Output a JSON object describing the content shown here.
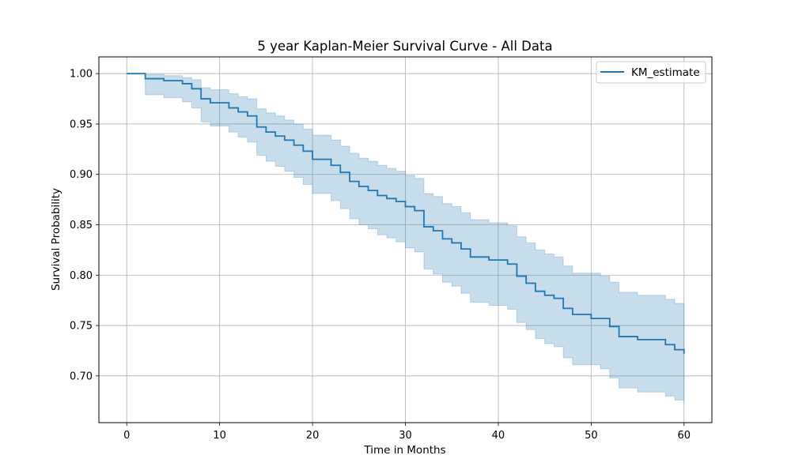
{
  "chart_data": {
    "type": "line",
    "title": "5 year Kaplan-Meier Survival Curve - All Data",
    "xlabel": "Time in Months",
    "ylabel": "Survival Probability",
    "xlim": [
      -3,
      63
    ],
    "ylim": [
      0.6536,
      1.0166
    ],
    "xticks": [
      0,
      10,
      20,
      30,
      40,
      50,
      60
    ],
    "yticks": [
      0.7,
      0.75,
      0.8,
      0.85,
      0.9,
      0.95,
      1.0
    ],
    "xtick_labels": [
      "0",
      "10",
      "20",
      "30",
      "40",
      "50",
      "60"
    ],
    "ytick_labels": [
      "0.70",
      "0.75",
      "0.80",
      "0.85",
      "0.90",
      "0.95",
      "1.00"
    ],
    "grid": true,
    "legend_position": "top-right",
    "step": "post",
    "line_color": "#1f77b4",
    "band_color": "#1f77b4",
    "series": [
      {
        "name": "KM_estimate",
        "x": [
          0,
          2,
          4,
          6,
          7,
          8,
          9,
          11,
          12,
          13,
          14,
          15,
          16,
          17,
          18,
          19,
          20,
          22,
          23,
          24,
          25,
          26,
          27,
          28,
          29,
          30,
          31,
          32,
          33,
          34,
          35,
          36,
          37,
          39,
          41,
          42,
          43,
          44,
          45,
          46,
          47,
          48,
          50,
          51,
          52,
          53,
          55,
          58,
          59,
          60
        ],
        "y": [
          1.0,
          0.995,
          0.993,
          0.99,
          0.985,
          0.975,
          0.971,
          0.966,
          0.962,
          0.958,
          0.947,
          0.942,
          0.938,
          0.934,
          0.929,
          0.923,
          0.915,
          0.909,
          0.902,
          0.893,
          0.888,
          0.884,
          0.879,
          0.876,
          0.873,
          0.868,
          0.864,
          0.848,
          0.844,
          0.836,
          0.832,
          0.826,
          0.818,
          0.815,
          0.811,
          0.799,
          0.792,
          0.784,
          0.78,
          0.777,
          0.767,
          0.761,
          0.757,
          0.757,
          0.749,
          0.739,
          0.736,
          0.731,
          0.726,
          0.722
        ],
        "ci_lower": [
          1.0,
          0.979,
          0.976,
          0.972,
          0.966,
          0.952,
          0.948,
          0.942,
          0.937,
          0.932,
          0.919,
          0.913,
          0.908,
          0.903,
          0.897,
          0.89,
          0.881,
          0.874,
          0.866,
          0.856,
          0.85,
          0.846,
          0.84,
          0.837,
          0.833,
          0.827,
          0.823,
          0.806,
          0.801,
          0.793,
          0.789,
          0.782,
          0.773,
          0.77,
          0.766,
          0.753,
          0.746,
          0.737,
          0.732,
          0.729,
          0.718,
          0.711,
          0.711,
          0.707,
          0.698,
          0.688,
          0.684,
          0.68,
          0.676,
          0.672
        ],
        "ci_upper": [
          1.0,
          0.999,
          0.998,
          0.996,
          0.994,
          0.986,
          0.984,
          0.98,
          0.977,
          0.975,
          0.965,
          0.961,
          0.958,
          0.954,
          0.95,
          0.945,
          0.939,
          0.934,
          0.928,
          0.921,
          0.916,
          0.913,
          0.909,
          0.906,
          0.903,
          0.899,
          0.896,
          0.881,
          0.878,
          0.871,
          0.868,
          0.862,
          0.855,
          0.852,
          0.849,
          0.838,
          0.832,
          0.825,
          0.821,
          0.818,
          0.809,
          0.802,
          0.802,
          0.799,
          0.793,
          0.783,
          0.78,
          0.776,
          0.772,
          0.77
        ]
      }
    ]
  }
}
